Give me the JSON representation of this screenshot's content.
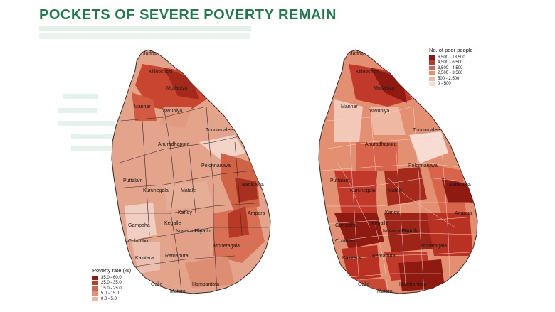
{
  "title": "POCKETS OF SEVERE POVERTY REMAIN",
  "colors": {
    "title": "#1f7a4d",
    "scale": [
      "#f6dcd2",
      "#eeb8a2",
      "#e58f74",
      "#d8654b",
      "#c0392b",
      "#8e1a12"
    ]
  },
  "left_map": {
    "labels": [
      "Jaffna",
      "Kilinochchi",
      "Mullaitivu",
      "Mannar",
      "Vavuniya",
      "Trincomalee",
      "Anuradhapura",
      "Polonnaruwa",
      "Puttalam",
      "Kurunegala",
      "Matale",
      "Batticaloa",
      "Kandy",
      "Ampara",
      "Kegalle",
      "Gampaha",
      "Nuwara Eliya",
      "Badulla",
      "Colombo",
      "Moneragala",
      "Ratnapura",
      "Kalutara",
      "Galle",
      "Hambantota",
      "Matara"
    ],
    "legend": {
      "title": "Poverty rate (%)",
      "items": [
        "35.0 - 60.0",
        "25.0 - 35.0",
        "15.0 - 25.0",
        "5.0 - 15.0",
        "0.0 - 5.0"
      ]
    }
  },
  "right_map": {
    "labels": [
      "Jaffna",
      "Kilinochchi",
      "Mullaitivu",
      "Mannar",
      "Vavuniya",
      "Trincomalee",
      "Anuradhapura",
      "Polonnaruwa",
      "Puttalam",
      "Kurunegala",
      "Matale",
      "Batticaloa",
      "Kandy",
      "Ampara",
      "Kegalle",
      "Gampaha",
      "Nuwara Eliya",
      "Badulla",
      "Colombo",
      "Moneragala",
      "Ratnapura",
      "Kalutara",
      "Galle",
      "Hambantota",
      "Matara"
    ],
    "legend": {
      "title": "No. of poor people",
      "items": [
        "6,500 - 18,500",
        "4,500 - 6,500",
        "3,500 - 4,500",
        "2,500 - 3,500",
        "500 - 2,500",
        "0 - 500"
      ]
    }
  }
}
